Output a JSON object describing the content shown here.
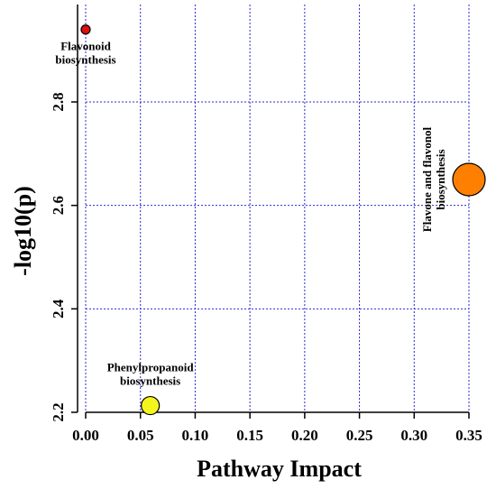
{
  "chart_data": {
    "type": "scatter",
    "xlabel": "Pathway Impact",
    "ylabel": "-log10(p)",
    "xlim": [
      0.0,
      0.35
    ],
    "ylim": [
      2.2,
      2.95
    ],
    "x_ticks": [
      0.0,
      0.05,
      0.1,
      0.15,
      0.2,
      0.25,
      0.3,
      0.35
    ],
    "x_tick_labels": [
      "0.00",
      "0.05",
      "0.10",
      "0.15",
      "0.20",
      "0.25",
      "0.30",
      "0.35"
    ],
    "y_ticks": [
      2.2,
      2.4,
      2.6,
      2.8
    ],
    "y_tick_labels": [
      "2.2",
      "2.4",
      "2.6",
      "2.8"
    ],
    "grid": true,
    "points": [
      {
        "label_lines": [
          "Flavonoid",
          "biosynthesis"
        ],
        "x": 0.0,
        "y": 2.94,
        "size": 5,
        "color": "#dd1111",
        "label_position": "below"
      },
      {
        "label_lines": [
          "Phenylpropanoid",
          "biosynthesis"
        ],
        "x": 0.059,
        "y": 2.213,
        "size": 10,
        "color": "#f5f51e",
        "label_position": "above"
      },
      {
        "label_lines": [
          "Flavone and flavonol",
          "biosynthesis"
        ],
        "x": 0.35,
        "y": 2.65,
        "size": 18,
        "color": "#ff7f00",
        "label_position": "left-rotated"
      }
    ]
  }
}
